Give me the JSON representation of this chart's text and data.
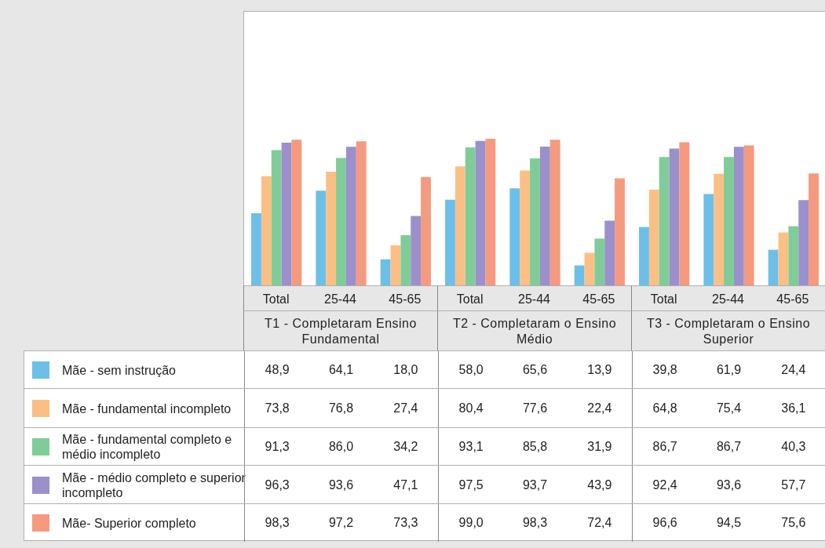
{
  "chart_data": {
    "type": "bar",
    "categories": [
      "Total",
      "25-44",
      "45-65",
      "Total",
      "25-44",
      "45-65",
      "Total",
      "25-44",
      "45-65"
    ],
    "annotations": [
      "T1 - Completaram Ensino Fundamental",
      "T2 - Completaram o Ensino Médio",
      "T3 - Completaram o Ensino Superior"
    ],
    "legend": "bottom left",
    "series": [
      {
        "name": "Mãe - sem instrução",
        "color": "#6cbfe8",
        "values": [
          48.9,
          64.1,
          18.0,
          58.0,
          65.6,
          13.9,
          39.8,
          61.9,
          24.4
        ],
        "value_labels": [
          "48,9",
          "64,1",
          "18,0",
          "58,0",
          "65,6",
          "13,9",
          "39,8",
          "61,9",
          "24,4"
        ]
      },
      {
        "name": "Mãe - fundamental incompleto",
        "color": "#fbbf85",
        "values": [
          73.8,
          76.8,
          27.4,
          80.4,
          77.6,
          22.4,
          64.8,
          75.4,
          36.1
        ],
        "value_labels": [
          "73,8",
          "76,8",
          "27,4",
          "80,4",
          "77,6",
          "22,4",
          "64,8",
          "75,4",
          "36,1"
        ]
      },
      {
        "name": "Mãe - fundamental completo e médio incompleto",
        "color": "#7fcc98",
        "values": [
          91.3,
          86.0,
          34.2,
          93.1,
          85.8,
          31.9,
          86.7,
          86.7,
          40.3
        ],
        "value_labels": [
          "91,3",
          "86,0",
          "34,2",
          "93,1",
          "85,8",
          "31,9",
          "86,7",
          "86,7",
          "40,3"
        ]
      },
      {
        "name": "Mãe - médio completo e superior incompleto",
        "color": "#9b8fcc",
        "values": [
          96.3,
          93.6,
          47.1,
          97.5,
          93.7,
          43.9,
          92.4,
          93.6,
          57.7
        ],
        "value_labels": [
          "96,3",
          "93,6",
          "47,1",
          "97,5",
          "93,7",
          "43,9",
          "92,4",
          "93,6",
          "57,7"
        ]
      },
      {
        "name": "Mãe- Superior completo",
        "color": "#f59a7e",
        "values": [
          98.3,
          97.2,
          73.3,
          99.0,
          98.3,
          72.4,
          96.6,
          94.5,
          75.6
        ],
        "value_labels": [
          "98,3",
          "97,2",
          "73,3",
          "99,0",
          "98,3",
          "72,4",
          "96,6",
          "94,5",
          "75,6"
        ]
      }
    ]
  }
}
